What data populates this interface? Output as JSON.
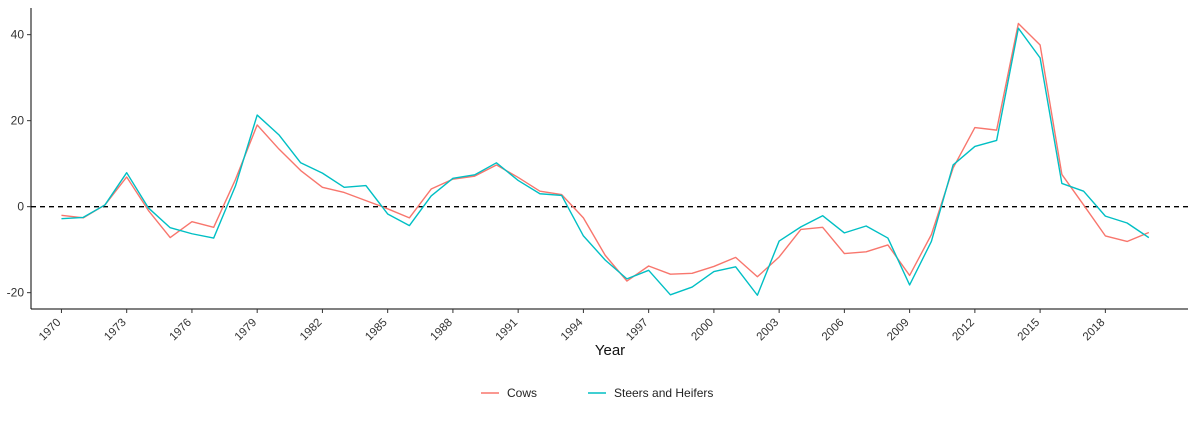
{
  "chart_data": {
    "type": "line",
    "title": "",
    "xlabel": "Year",
    "ylabel": "",
    "x": [
      1970,
      1971,
      1972,
      1973,
      1974,
      1975,
      1976,
      1977,
      1978,
      1979,
      1980,
      1981,
      1982,
      1983,
      1984,
      1985,
      1986,
      1987,
      1988,
      1989,
      1990,
      1991,
      1992,
      1993,
      1994,
      1995,
      1996,
      1997,
      1998,
      1999,
      2000,
      2001,
      2002,
      2003,
      2004,
      2005,
      2006,
      2007,
      2008,
      2009,
      2010,
      2011,
      2012,
      2013,
      2014,
      2015,
      2016,
      2017,
      2018,
      2019,
      2020
    ],
    "x_ticks": [
      "1970",
      "1973",
      "1976",
      "1979",
      "1982",
      "1985",
      "1988",
      "1991",
      "1994",
      "1997",
      "2000",
      "2003",
      "2006",
      "2009",
      "2012",
      "2015",
      "2018"
    ],
    "y_ticks": [
      "-20",
      "0",
      "20",
      "40"
    ],
    "xlim": [
      1968.6,
      2021.8
    ],
    "ylim": [
      -23.8,
      46.2
    ],
    "reference_line": 0,
    "grid": false,
    "legend_position": "bottom",
    "series": [
      {
        "name": "Cows",
        "color": "#F8766D",
        "values": [
          -2.0,
          -2.6,
          0.4,
          6.9,
          -0.9,
          -7.2,
          -3.5,
          -4.8,
          6.3,
          19.0,
          13.4,
          8.4,
          4.5,
          3.3,
          1.4,
          -0.5,
          -2.6,
          4.1,
          6.4,
          7.1,
          9.7,
          6.8,
          3.6,
          2.8,
          -2.6,
          -11.3,
          -17.3,
          -13.8,
          -15.7,
          -15.5,
          -13.9,
          -11.8,
          -16.3,
          -11.7,
          -5.3,
          -4.8,
          -10.9,
          -10.5,
          -8.9,
          -16.0,
          -6.5,
          9.0,
          18.4,
          17.8,
          42.6,
          37.6,
          7.5,
          0.4,
          -6.8,
          -8.1,
          -6.0
        ]
      },
      {
        "name": "Steers and Heifers",
        "color": "#00BFC4",
        "values": [
          -2.8,
          -2.5,
          0.4,
          7.9,
          -0.3,
          -4.9,
          -6.3,
          -7.3,
          4.8,
          21.3,
          16.7,
          10.2,
          7.8,
          4.5,
          4.9,
          -1.7,
          -4.4,
          2.5,
          6.6,
          7.4,
          10.2,
          6.1,
          3.0,
          2.6,
          -6.8,
          -12.4,
          -16.8,
          -14.8,
          -20.5,
          -18.7,
          -15.1,
          -14.0,
          -20.6,
          -8.0,
          -4.7,
          -2.1,
          -6.1,
          -4.5,
          -7.3,
          -18.2,
          -8.1,
          9.7,
          14.0,
          15.4,
          41.5,
          34.6,
          5.4,
          3.6,
          -2.2,
          -3.8,
          -7.2
        ]
      }
    ]
  }
}
